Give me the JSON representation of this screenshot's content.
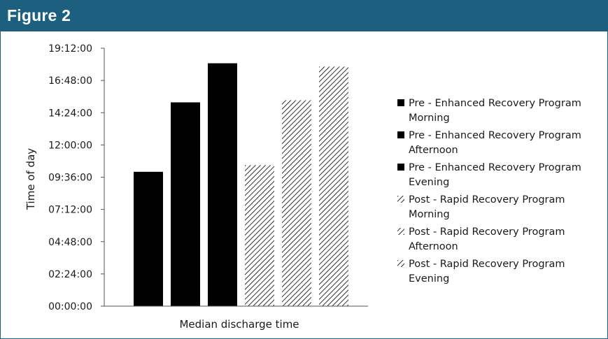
{
  "figure": {
    "title": "Figure 2"
  },
  "colors": {
    "header": "#1d5f7f",
    "header_text": "#ffffff",
    "solid_bar": "#000000",
    "hatch": "#000000"
  },
  "chart_data": {
    "type": "bar",
    "xlabel": "Median discharge time",
    "ylabel": "Time of day",
    "yticks": [
      "00:00:00",
      "02:24:00",
      "04:48:00",
      "07:12:00",
      "09:36:00",
      "12:00:00",
      "14:24:00",
      "16:48:00",
      "19:12:00"
    ],
    "ylim_hours": [
      0,
      19.2
    ],
    "grid": false,
    "legend_position": "right",
    "series": [
      {
        "name": "Pre - Enhanced Recovery Program Morning",
        "legend_lines": [
          "Pre - Enhanced Recovery Program",
          "Morning"
        ],
        "value": "10:00",
        "value_hours": 10.0,
        "fill": "solid"
      },
      {
        "name": "Pre - Enhanced Recovery Program Afternoon",
        "legend_lines": [
          "Pre - Enhanced Recovery Program",
          "Afternoon"
        ],
        "value": "15:10",
        "value_hours": 15.17,
        "fill": "solid"
      },
      {
        "name": "Pre - Enhanced Recovery Program Evening",
        "legend_lines": [
          "Pre - Enhanced Recovery Program",
          "Evening"
        ],
        "value": "18:05",
        "value_hours": 18.08,
        "fill": "solid"
      },
      {
        "name": "Post - Rapid Recovery Program Morning",
        "legend_lines": [
          "Post - Rapid Recovery Program",
          "Morning"
        ],
        "value": "10:30",
        "value_hours": 10.5,
        "fill": "hatch"
      },
      {
        "name": "Post - Rapid Recovery Program Afternoon",
        "legend_lines": [
          "Post - Rapid Recovery Program",
          "Afternoon"
        ],
        "value": "15:20",
        "value_hours": 15.33,
        "fill": "hatch"
      },
      {
        "name": "Post - Rapid Recovery Program Evening",
        "legend_lines": [
          "Post - Rapid Recovery Program",
          "Evening"
        ],
        "value": "17:50",
        "value_hours": 17.83,
        "fill": "hatch"
      }
    ]
  }
}
